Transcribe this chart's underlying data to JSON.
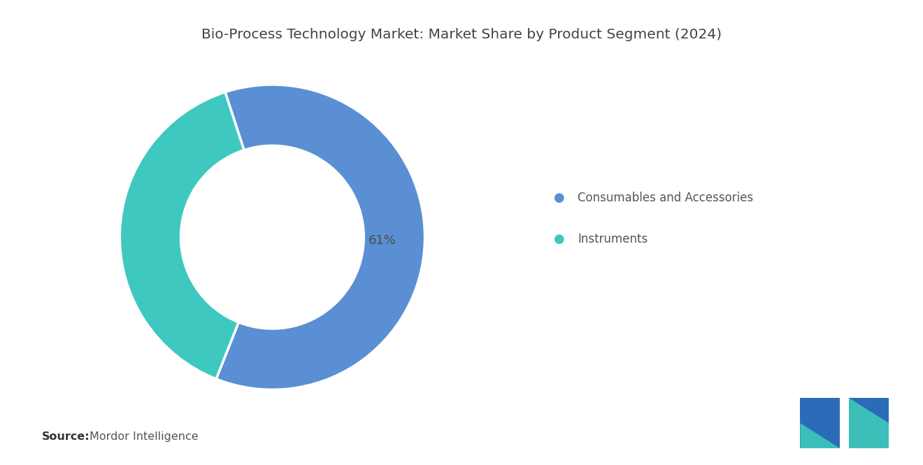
{
  "title": "Bio-Process Technology Market: Market Share by Product Segment (2024)",
  "segments": [
    "Consumables and Accessories",
    "Instruments"
  ],
  "values": [
    61,
    39
  ],
  "colors": [
    "#5B8FD4",
    "#3EC8C0"
  ],
  "label_61": "61%",
  "legend_labels": [
    "Consumables and Accessories",
    "Instruments"
  ],
  "source_bold": "Source:",
  "source_text": "Mordor Intelligence",
  "background_color": "#ffffff",
  "title_fontsize": 14.5,
  "label_fontsize": 13,
  "legend_fontsize": 12,
  "source_fontsize": 11.5,
  "start_angle": 108,
  "donut_width": 0.4
}
